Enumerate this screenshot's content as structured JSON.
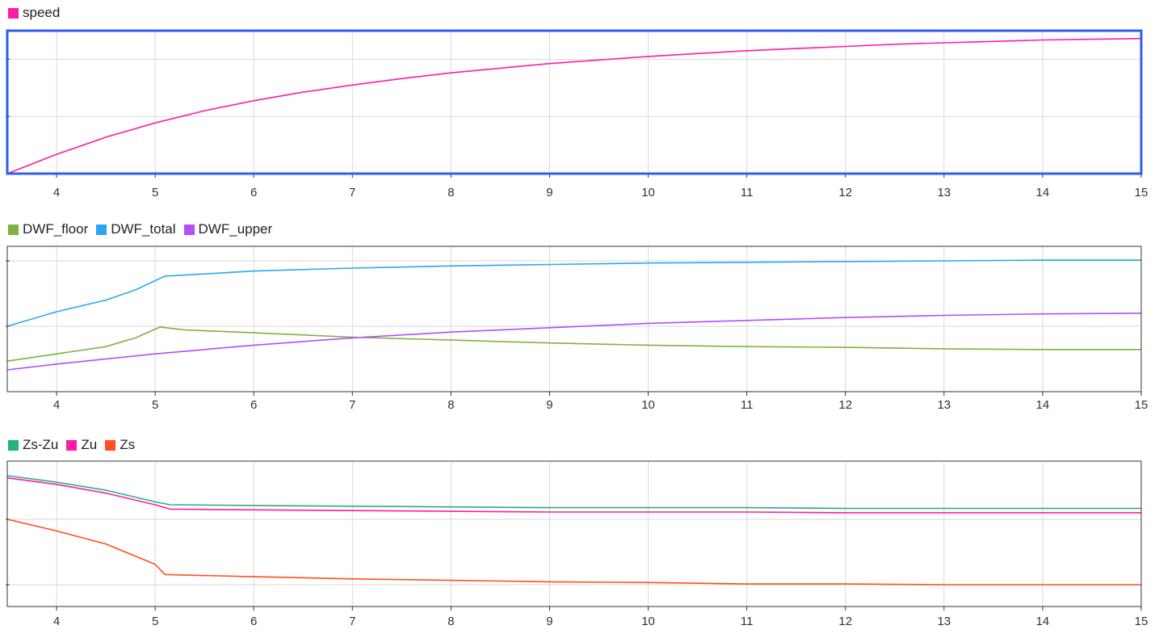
{
  "colors": {
    "speed": "#ff1aa8",
    "DWF_floor": "#7cb342",
    "DWF_total": "#29a8f0",
    "DWF_upper": "#b44ef5",
    "Zs-Zu": "#26b07a",
    "Zu": "#ff1aa8",
    "Zs": "#ff4f1f",
    "grid": "#d9d9d9",
    "frame": "#333333",
    "selected_frame": "#2e5df0"
  },
  "chart_data": [
    {
      "type": "line",
      "selected": true,
      "xlim": [
        3.5,
        15
      ],
      "ylim": [
        0,
        1
      ],
      "x_ticks": [
        4,
        5,
        6,
        7,
        8,
        9,
        10,
        11,
        12,
        13,
        14,
        15
      ],
      "y_grid": [
        0.4,
        0.8
      ],
      "legend_position": "top-left",
      "grid": true,
      "series": [
        {
          "name": "speed",
          "color_key": "speed",
          "x": [
            3.5,
            4,
            4.5,
            5,
            5.5,
            6,
            6.5,
            7,
            7.5,
            8,
            8.5,
            9,
            9.5,
            10,
            10.5,
            11,
            11.5,
            12,
            12.5,
            13,
            13.5,
            14,
            14.5,
            15
          ],
          "y": [
            0.0,
            0.135,
            0.255,
            0.355,
            0.44,
            0.51,
            0.57,
            0.62,
            0.665,
            0.705,
            0.738,
            0.77,
            0.795,
            0.82,
            0.84,
            0.86,
            0.875,
            0.89,
            0.905,
            0.915,
            0.925,
            0.935,
            0.94,
            0.945
          ]
        }
      ]
    },
    {
      "type": "line",
      "selected": false,
      "xlim": [
        3.5,
        15
      ],
      "ylim": [
        0,
        1
      ],
      "x_ticks": [
        4,
        5,
        6,
        7,
        8,
        9,
        10,
        11,
        12,
        13,
        14,
        15
      ],
      "y_grid": [
        0.45,
        0.9
      ],
      "legend_position": "top-left",
      "grid": true,
      "series": [
        {
          "name": "DWF_floor",
          "color_key": "DWF_floor",
          "x": [
            3.5,
            4,
            4.5,
            4.8,
            5.05,
            5.3,
            6,
            7,
            8,
            9,
            10,
            11,
            12,
            13,
            14,
            15
          ],
          "y": [
            0.21,
            0.26,
            0.31,
            0.37,
            0.445,
            0.425,
            0.405,
            0.375,
            0.355,
            0.335,
            0.32,
            0.31,
            0.305,
            0.295,
            0.29,
            0.29
          ]
        },
        {
          "name": "DWF_total",
          "color_key": "DWF_total",
          "x": [
            3.5,
            4,
            4.5,
            4.8,
            5.1,
            5.5,
            6,
            7,
            8,
            9,
            10,
            11,
            12,
            13,
            14,
            15
          ],
          "y": [
            0.45,
            0.55,
            0.63,
            0.7,
            0.795,
            0.81,
            0.83,
            0.85,
            0.865,
            0.875,
            0.885,
            0.89,
            0.895,
            0.9,
            0.905,
            0.905
          ]
        },
        {
          "name": "DWF_upper",
          "color_key": "DWF_upper",
          "x": [
            3.5,
            4,
            5,
            6,
            7,
            8,
            9,
            10,
            11,
            12,
            13,
            14,
            15
          ],
          "y": [
            0.15,
            0.19,
            0.26,
            0.32,
            0.37,
            0.41,
            0.44,
            0.47,
            0.49,
            0.51,
            0.525,
            0.535,
            0.54
          ]
        }
      ]
    },
    {
      "type": "line",
      "selected": false,
      "xlim": [
        3.5,
        15
      ],
      "ylim": [
        0,
        1
      ],
      "x_ticks": [
        4,
        5,
        6,
        7,
        8,
        9,
        10,
        11,
        12,
        13,
        14,
        15
      ],
      "y_grid": [
        0.15,
        0.6
      ],
      "legend_position": "top-left",
      "grid": true,
      "series": [
        {
          "name": "Zs-Zu",
          "color_key": "Zs-Zu",
          "x": [
            3.5,
            4,
            4.5,
            5,
            5.15,
            6,
            7,
            8,
            9,
            10,
            11,
            12,
            13,
            14,
            15
          ],
          "y": [
            0.9,
            0.855,
            0.8,
            0.72,
            0.7,
            0.695,
            0.69,
            0.685,
            0.68,
            0.68,
            0.68,
            0.675,
            0.675,
            0.675,
            0.675
          ]
        },
        {
          "name": "Zu",
          "color_key": "Zu",
          "x": [
            3.5,
            4,
            4.5,
            5,
            5.15,
            6,
            7,
            8,
            9,
            10,
            11,
            12,
            13,
            14,
            15
          ],
          "y": [
            0.885,
            0.84,
            0.78,
            0.7,
            0.67,
            0.665,
            0.66,
            0.655,
            0.65,
            0.65,
            0.65,
            0.645,
            0.645,
            0.645,
            0.645
          ]
        },
        {
          "name": "Zs",
          "color_key": "Zs",
          "x": [
            3.5,
            4,
            4.5,
            5,
            5.1,
            6,
            7,
            8,
            9,
            10,
            11,
            12,
            13,
            14,
            15
          ],
          "y": [
            0.6,
            0.52,
            0.43,
            0.29,
            0.22,
            0.205,
            0.19,
            0.18,
            0.17,
            0.165,
            0.155,
            0.155,
            0.15,
            0.15,
            0.15
          ]
        }
      ]
    }
  ]
}
